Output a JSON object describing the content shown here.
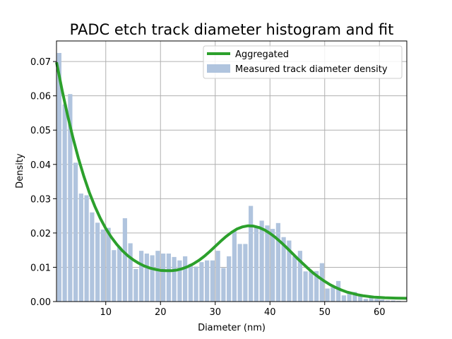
{
  "chart_data": {
    "type": "bar",
    "title": "PADC etch track diameter histogram and fit",
    "xlabel": "Diameter (nm)",
    "ylabel": "Density",
    "xlim": [
      1,
      65
    ],
    "ylim": [
      0,
      0.076
    ],
    "xticks": [
      10,
      20,
      30,
      40,
      50,
      60
    ],
    "xtick_labels": [
      "10",
      "20",
      "30",
      "40",
      "50",
      "60"
    ],
    "yticks": [
      0,
      0.01,
      0.02,
      0.03,
      0.04,
      0.05,
      0.06,
      0.07
    ],
    "ytick_labels": [
      "0.00",
      "0.01",
      "0.02",
      "0.03",
      "0.04",
      "0.05",
      "0.06",
      "0.07"
    ],
    "grid": true,
    "legend_placement": "top-right",
    "series": [
      {
        "name": "Measured track diameter density",
        "kind": "bar",
        "color": "#b0c4de",
        "bin_width": 1,
        "x": [
          1,
          2,
          3,
          4,
          5,
          6,
          7,
          8,
          9,
          10,
          11,
          12,
          13,
          14,
          15,
          16,
          17,
          18,
          19,
          20,
          21,
          22,
          23,
          24,
          25,
          26,
          27,
          28,
          29,
          30,
          31,
          32,
          33,
          34,
          35,
          36,
          37,
          38,
          39,
          40,
          41,
          42,
          43,
          44,
          45,
          46,
          47,
          48,
          49,
          50,
          51,
          52,
          53,
          54,
          55,
          56,
          57,
          58,
          59,
          60,
          61,
          62,
          63,
          64
        ],
        "values": [
          0.0725,
          0.0575,
          0.0605,
          0.0405,
          0.0315,
          0.031,
          0.026,
          0.023,
          0.021,
          0.0215,
          0.015,
          0.016,
          0.0243,
          0.017,
          0.0095,
          0.0148,
          0.014,
          0.0135,
          0.0148,
          0.014,
          0.014,
          0.013,
          0.012,
          0.0132,
          0.011,
          0.0102,
          0.0115,
          0.012,
          0.012,
          0.0148,
          0.0098,
          0.0132,
          0.0205,
          0.0168,
          0.0168,
          0.0279,
          0.0218,
          0.0236,
          0.0222,
          0.0212,
          0.0229,
          0.0188,
          0.0178,
          0.0132,
          0.0148,
          0.0088,
          0.0088,
          0.0089,
          0.0112,
          0.0038,
          0.0042,
          0.006,
          0.0018,
          0.0024,
          0.0028,
          0.0018,
          0.0008,
          0.0012,
          0.0008,
          0.0006,
          0.0003,
          0.0003,
          0.0002,
          0.0001
        ]
      },
      {
        "name": "Aggregated",
        "kind": "line",
        "color": "#2ca02c",
        "x": [
          1,
          2,
          3,
          4,
          5,
          6,
          7,
          8,
          9,
          10,
          11,
          12,
          13,
          14,
          15,
          16,
          17,
          18,
          19,
          20,
          21,
          22,
          23,
          24,
          25,
          26,
          27,
          28,
          29,
          30,
          31,
          32,
          33,
          34,
          35,
          36,
          37,
          38,
          39,
          40,
          41,
          42,
          43,
          44,
          45,
          46,
          47,
          48,
          49,
          50,
          51,
          52,
          53,
          54,
          55,
          56,
          57,
          58,
          59,
          60,
          61,
          62,
          63,
          64,
          65
        ],
        "values": [
          0.0698,
          0.0618,
          0.0545,
          0.0478,
          0.0418,
          0.0365,
          0.0318,
          0.0278,
          0.0243,
          0.0213,
          0.0188,
          0.0167,
          0.0149,
          0.0134,
          0.0122,
          0.0112,
          0.0104,
          0.0098,
          0.0094,
          0.0091,
          0.009,
          0.009,
          0.0092,
          0.0096,
          0.0102,
          0.011,
          0.012,
          0.0132,
          0.0146,
          0.0161,
          0.0176,
          0.019,
          0.0202,
          0.0212,
          0.0218,
          0.0221,
          0.022,
          0.0216,
          0.0209,
          0.0199,
          0.0187,
          0.0173,
          0.0158,
          0.0142,
          0.0126,
          0.0111,
          0.0096,
          0.0082,
          0.007,
          0.0059,
          0.0049,
          0.0041,
          0.0034,
          0.0028,
          0.0024,
          0.002,
          0.0017,
          0.0015,
          0.0013,
          0.0012,
          0.0011,
          0.00105,
          0.001,
          0.00098,
          0.00096
        ]
      }
    ]
  }
}
